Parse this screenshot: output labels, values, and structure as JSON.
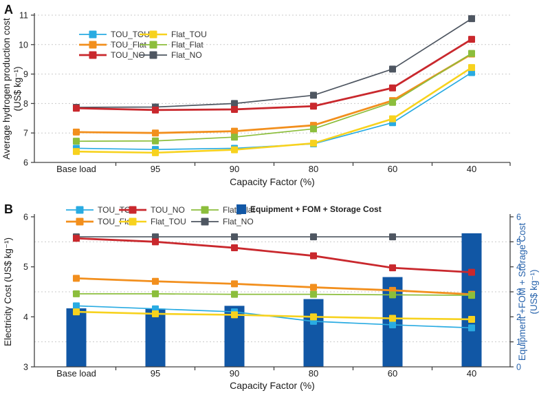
{
  "figure": {
    "panel_a_letter": "A",
    "panel_b_letter": "B"
  },
  "chart_data": [
    {
      "panel": "A",
      "type": "line",
      "title": "",
      "categories": [
        "Base load",
        "95",
        "90",
        "80",
        "60",
        "40"
      ],
      "xlabel": "Capacity Factor (%)",
      "ylabel": [
        "Average hydrogen production cost",
        "(US$ kg⁻¹)"
      ],
      "ylim": [
        6,
        11
      ],
      "yticks": [
        6,
        7,
        8,
        9,
        10,
        11
      ],
      "grid": "dotted-horizontal-at-integer-ticks",
      "legend_position": "inside-top-left",
      "legend_columns": [
        [
          "TOU_TOU",
          "TOU_Flat",
          "TOU_NO"
        ],
        [
          "Flat_TOU",
          "Flat_Flat",
          "Flat_NO"
        ]
      ],
      "series": [
        {
          "name": "TOU_TOU",
          "color": "#29ABE2",
          "values": [
            6.48,
            6.44,
            6.48,
            6.63,
            7.35,
            9.05
          ]
        },
        {
          "name": "TOU_Flat",
          "color": "#F28F1D",
          "values": [
            7.03,
            7.0,
            7.06,
            7.26,
            8.1,
            9.68
          ]
        },
        {
          "name": "TOU_NO",
          "color": "#C9282D",
          "values": [
            7.84,
            7.78,
            7.8,
            7.91,
            8.53,
            10.18
          ]
        },
        {
          "name": "Flat_TOU",
          "color": "#F7D21E",
          "values": [
            6.37,
            6.33,
            6.43,
            6.65,
            7.48,
            9.22
          ]
        },
        {
          "name": "Flat_Flat",
          "color": "#8CBE3C",
          "values": [
            6.72,
            6.73,
            6.86,
            7.14,
            8.04,
            9.7
          ]
        },
        {
          "name": "Flat_NO",
          "color": "#4E5661",
          "values": [
            7.87,
            7.88,
            8.0,
            8.28,
            9.17,
            10.88
          ]
        }
      ]
    },
    {
      "panel": "B",
      "type": "line+bar",
      "title": "",
      "categories": [
        "Base load",
        "95",
        "90",
        "80",
        "60",
        "40"
      ],
      "xlabel": "Capacity Factor (%)",
      "ylabel_left": "Electricity Cost (US$ kg⁻¹)",
      "ylabel_right": [
        "Equipment +FOM + Storage Cost",
        "(US$ kg⁻¹)"
      ],
      "ylim_left": [
        3,
        6
      ],
      "yticks_left": [
        3,
        4,
        5,
        6
      ],
      "ylim_right": [
        0,
        6
      ],
      "yticks_right": [
        0,
        1,
        2,
        3,
        4,
        5,
        6
      ],
      "gridlines_at_left_values": [
        3.5,
        4.5,
        5.5
      ],
      "legend_position": "above-plot",
      "legend_columns": [
        [
          "TOU_TOU",
          "TOU_Flat"
        ],
        [
          "TOU_NO",
          "Flat_TOU"
        ],
        [
          "Flat_Flat",
          "Flat_NO"
        ]
      ],
      "legend_bar_item": "Equipment + FOM + Storage Cost",
      "right_axis_color": "#2763AC",
      "bar_series": {
        "name": "Equipment + FOM + Storage Cost",
        "color": "#1157A5",
        "axis": "right",
        "values": [
          2.34,
          2.33,
          2.44,
          2.71,
          3.59,
          5.34
        ]
      },
      "series": [
        {
          "name": "TOU_TOU",
          "color": "#29ABE2",
          "axis": "left",
          "values": [
            4.22,
            4.16,
            4.1,
            3.91,
            3.84,
            3.78
          ]
        },
        {
          "name": "TOU_Flat",
          "color": "#F28F1D",
          "axis": "left",
          "values": [
            4.77,
            4.71,
            4.66,
            4.59,
            4.53,
            4.45
          ]
        },
        {
          "name": "TOU_NO",
          "color": "#C9282D",
          "axis": "left",
          "values": [
            5.57,
            5.5,
            5.38,
            5.22,
            4.98,
            4.89
          ]
        },
        {
          "name": "Flat_TOU",
          "color": "#F7D21E",
          "axis": "left",
          "values": [
            4.1,
            4.06,
            4.04,
            4.0,
            3.97,
            3.95
          ]
        },
        {
          "name": "Flat_Flat",
          "color": "#8CBE3C",
          "axis": "left",
          "values": [
            4.46,
            4.46,
            4.45,
            4.45,
            4.44,
            4.43
          ]
        },
        {
          "name": "Flat_NO",
          "color": "#4E5661",
          "axis": "left",
          "values": [
            5.6,
            5.6,
            5.6,
            5.6,
            5.6,
            5.6
          ]
        }
      ]
    }
  ]
}
